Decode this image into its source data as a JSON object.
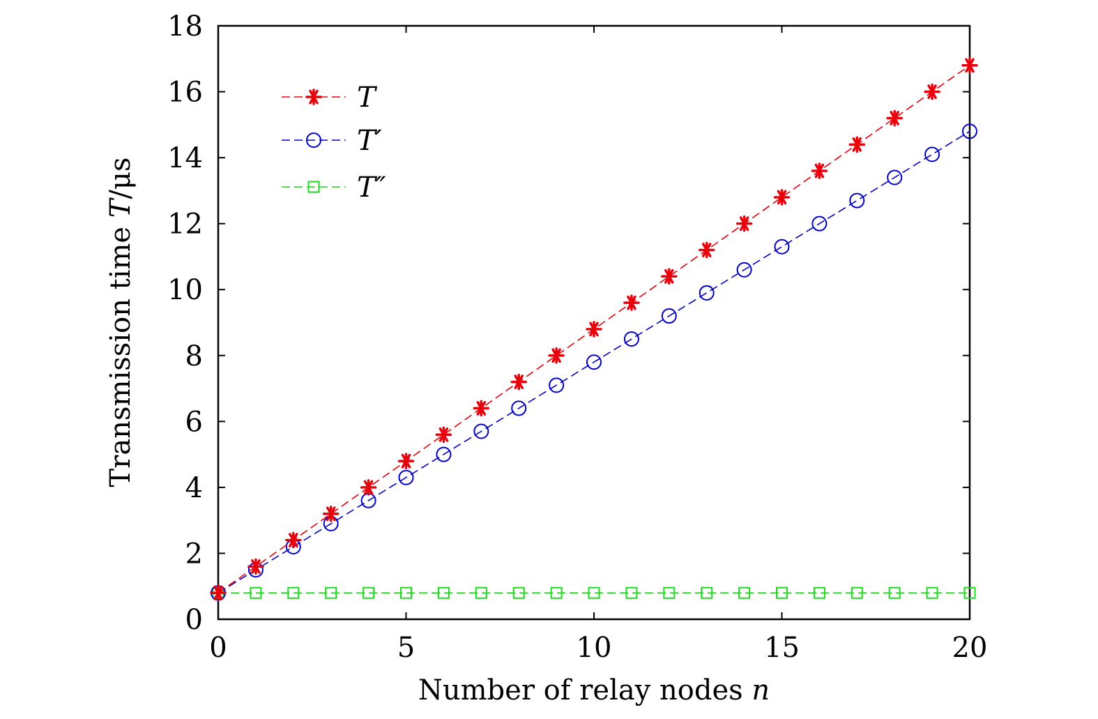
{
  "chart_data": {
    "type": "line",
    "xlabel": "Number of relay nodes",
    "xlabel_var": "n",
    "ylabel": "Transmission time",
    "ylabel_var": "T",
    "ylabel_unit": "/μs",
    "xlim": [
      0,
      20
    ],
    "ylim": [
      0,
      18
    ],
    "xticks": [
      0,
      5,
      10,
      15,
      20
    ],
    "yticks": [
      0,
      2,
      4,
      6,
      8,
      10,
      12,
      14,
      16,
      18
    ],
    "grid": false,
    "legend_position": "top-left",
    "x": [
      0,
      1,
      2,
      3,
      4,
      5,
      6,
      7,
      8,
      9,
      10,
      11,
      12,
      13,
      14,
      15,
      16,
      17,
      18,
      19,
      20
    ],
    "series": [
      {
        "name": "T",
        "color": "#e8000b",
        "marker": "asterisk",
        "values": [
          0.8,
          1.6,
          2.4,
          3.2,
          4.0,
          4.8,
          5.6,
          6.4,
          7.2,
          8.0,
          8.8,
          9.6,
          10.4,
          11.2,
          12.0,
          12.8,
          13.6,
          14.4,
          15.2,
          16.0,
          16.8
        ]
      },
      {
        "name": "T′",
        "color": "#0000c8",
        "marker": "circle",
        "values": [
          0.8,
          1.5,
          2.2,
          2.9,
          3.6,
          4.3,
          5.0,
          5.7,
          6.4,
          7.1,
          7.8,
          8.5,
          9.2,
          9.9,
          10.6,
          11.3,
          12.0,
          12.7,
          13.4,
          14.1,
          14.8
        ]
      },
      {
        "name": "T″",
        "color": "#1ed81e",
        "marker": "square",
        "values": [
          0.8,
          0.8,
          0.8,
          0.8,
          0.8,
          0.8,
          0.8,
          0.8,
          0.8,
          0.8,
          0.8,
          0.8,
          0.8,
          0.8,
          0.8,
          0.8,
          0.8,
          0.8,
          0.8,
          0.8,
          0.8
        ]
      }
    ]
  }
}
